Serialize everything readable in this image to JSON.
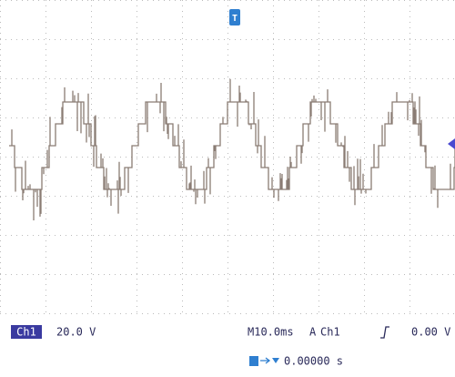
{
  "status": {
    "channel": "Ch1",
    "scale": "20.0 V",
    "timebase": "M10.0ms",
    "trigger_mode": "A",
    "trigger_source": "Ch1",
    "trigger_level": "0.00 V",
    "position": "0.00000 s"
  }
}
